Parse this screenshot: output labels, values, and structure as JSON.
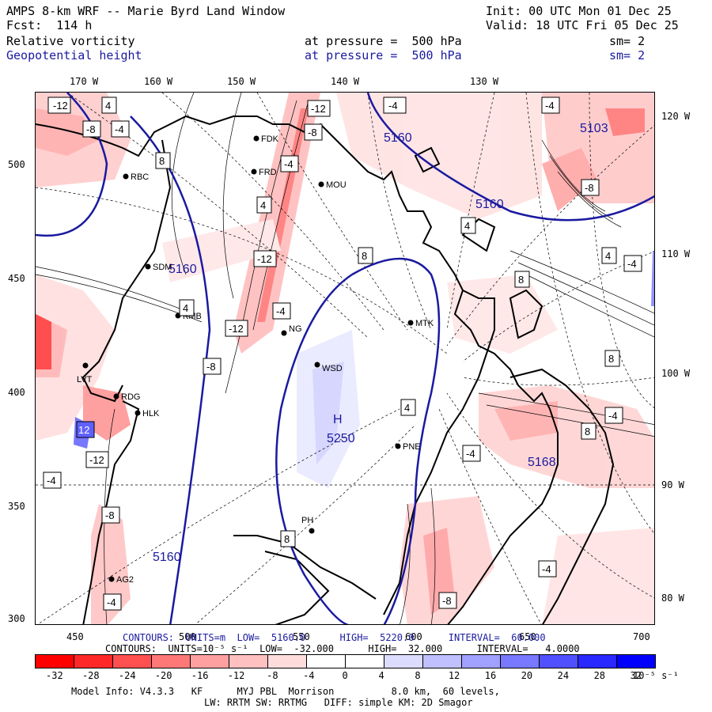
{
  "header": {
    "title": "AMPS 8-km WRF -- Marie Byrd Land Window",
    "init": "Init: 00 UTC Mon 01 Dec 25",
    "fcst": "Fcst:  114 h",
    "valid": "Valid: 18 UTC Fri 05 Dec 25",
    "field1_name": "Relative vorticity",
    "field1_level": "at pressure =  500 hPa",
    "field1_sm": "sm= 2",
    "field2_name": "Geopotential height",
    "field2_level": "at pressure =  500 hPa",
    "field2_sm": "sm= 2"
  },
  "colors": {
    "height_contour": "#1a1aa0",
    "coast": "#000000"
  },
  "axes": {
    "top_lon": [
      "170 W",
      "160 W",
      "150 W",
      "140 W",
      "130 W"
    ],
    "right_lon": [
      "120 W",
      "110 W",
      "100 W",
      "90 W",
      "80 W"
    ],
    "left_y": [
      "500",
      "450",
      "400",
      "350",
      "300"
    ],
    "bottom_x": [
      "450",
      "500",
      "550",
      "600",
      "650",
      "700"
    ]
  },
  "stations": [
    "FDK",
    "FRD",
    "MOU",
    "RBC",
    "SDM",
    "KMB",
    "NG",
    "MTK",
    "WSD",
    "LVT",
    "RDG",
    "HLK",
    "PNE",
    "PH",
    "AG2"
  ],
  "height_labels": [
    "5160",
    "5160",
    "5160",
    "5160",
    "5250",
    "5103",
    "5168",
    "H"
  ],
  "vort_labels_sample": [
    "-12",
    "-8",
    "-4",
    "4",
    "8",
    "-12",
    "-8",
    "-4",
    "4",
    "8",
    "-4",
    "4",
    "8",
    "-12",
    "-4",
    "4",
    "-8",
    "12",
    "-4",
    "-12",
    "-8",
    "-4",
    "-4",
    "-8",
    "-4",
    "4",
    "8",
    "-4",
    "4",
    "8",
    "-4",
    "8",
    "-4",
    "-8",
    "-12"
  ],
  "footer": {
    "contours_height": "CONTOURS:  UNITS=m  LOW=  5160.0      HIGH=  5220.0      INTERVAL=  60.000",
    "contours_vort": "CONTOURS:  UNITS=10⁻⁵ s⁻¹  LOW=  -32.000      HIGH=  32.000      INTERVAL=   4.0000",
    "model_info_1": "Model Info: V4.3.3   KF      MYJ PBL  Morrison          8.0 km,  60 levels,",
    "model_info_2": "LW: RRTM SW: RRTMG   DIFF: simple KM: 2D Smagor"
  },
  "colorbar": {
    "labels": [
      "-32",
      "-28",
      "-24",
      "-20",
      "-16",
      "-12",
      "-8",
      "-4",
      "0",
      "4",
      "8",
      "12",
      "16",
      "20",
      "24",
      "28",
      "32"
    ],
    "unit": "10⁻⁵ s⁻¹",
    "colors": [
      "#ff0000",
      "#ff2828",
      "#ff5050",
      "#ff7878",
      "#ffa0a0",
      "#ffc0c0",
      "#ffdcdc",
      "#ffffff",
      "#ffffff",
      "#dcdcff",
      "#c0c0ff",
      "#a0a0ff",
      "#7878ff",
      "#5050ff",
      "#2828ff",
      "#0000ff"
    ]
  }
}
